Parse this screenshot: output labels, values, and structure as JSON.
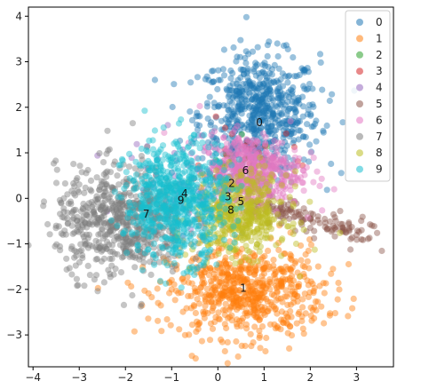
{
  "chart_data": {
    "type": "scatter",
    "title": "",
    "xlabel": "",
    "ylabel": "",
    "xlim": [
      -4.1,
      3.8
    ],
    "ylim": [
      -3.7,
      4.2
    ],
    "xticks": [
      -4,
      -3,
      -2,
      -1,
      0,
      1,
      2,
      3
    ],
    "yticks": [
      -3,
      -2,
      -1,
      0,
      1,
      2,
      3,
      4
    ],
    "grid": false,
    "legend_position": "top-right",
    "marker_alpha": 0.45,
    "series": [
      {
        "name": "0",
        "color": "#1f77b4",
        "center": [
          0.9,
          1.85
        ],
        "spread": [
          0.65,
          0.65
        ],
        "n": 650,
        "label_pos": [
          0.9,
          1.65
        ]
      },
      {
        "name": "1",
        "color": "#ff7f0e",
        "center": [
          0.6,
          -2.05
        ],
        "spread": [
          0.85,
          0.5
        ],
        "n": 650,
        "label_pos": [
          0.55,
          -1.98
        ]
      },
      {
        "name": "2",
        "color": "#2ca02c",
        "center": [
          0.4,
          0.5
        ],
        "spread": [
          0.4,
          0.35
        ],
        "n": 40,
        "label_pos": [
          0.3,
          0.32
        ]
      },
      {
        "name": "3",
        "color": "#d62728",
        "center": [
          0.7,
          0.8
        ],
        "spread": [
          0.5,
          0.4
        ],
        "n": 35,
        "label_pos": [
          0.22,
          0.03
        ]
      },
      {
        "name": "4",
        "color": "#9467bd",
        "center": [
          -0.8,
          0.3
        ],
        "spread": [
          0.6,
          0.5
        ],
        "n": 60,
        "label_pos": [
          -0.72,
          0.09
        ]
      },
      {
        "name": "5",
        "color": "#8c564b",
        "center": [
          1.9,
          -0.4
        ],
        "spread": [
          0.6,
          0.25
        ],
        "n": 140,
        "label_pos": [
          0.5,
          -0.08
        ]
      },
      {
        "name": "6",
        "color": "#e377c2",
        "center": [
          0.7,
          0.6
        ],
        "spread": [
          0.55,
          0.4
        ],
        "n": 500,
        "label_pos": [
          0.6,
          0.6
        ]
      },
      {
        "name": "7",
        "color": "#7f7f7f",
        "center": [
          -2.1,
          -0.5
        ],
        "spread": [
          0.7,
          0.6
        ],
        "n": 650,
        "label_pos": [
          -1.55,
          -0.35
        ]
      },
      {
        "name": "8",
        "color": "#bcbd22",
        "center": [
          0.5,
          -0.35
        ],
        "spread": [
          0.5,
          0.45
        ],
        "n": 450,
        "label_pos": [
          0.28,
          -0.27
        ]
      },
      {
        "name": "9",
        "color": "#17becf",
        "center": [
          -0.9,
          -0.05
        ],
        "spread": [
          0.55,
          0.65
        ],
        "n": 700,
        "label_pos": [
          -0.8,
          -0.05
        ]
      }
    ]
  }
}
